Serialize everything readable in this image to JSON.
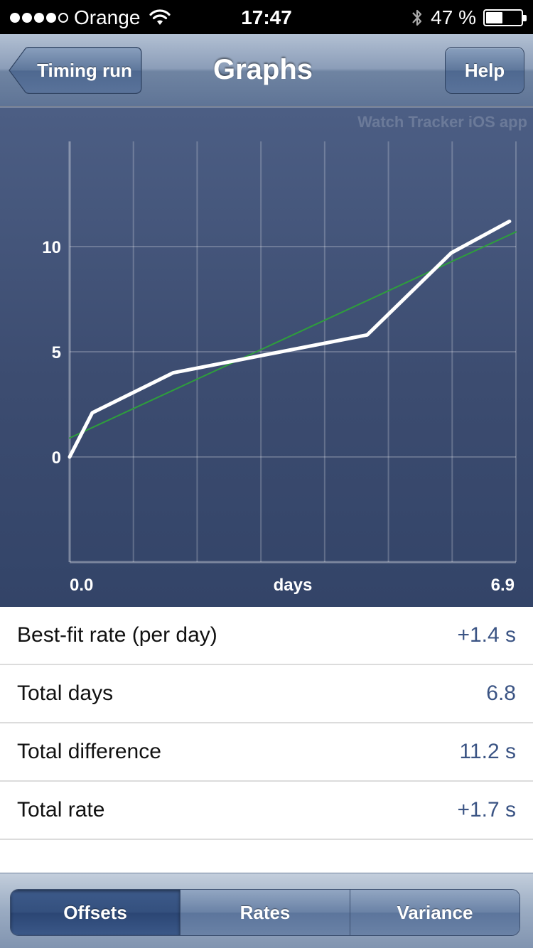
{
  "status_bar": {
    "carrier": "Orange",
    "signal_bars_filled": 4,
    "signal_bars_total": 5,
    "time": "17:47",
    "battery_text": "47 %",
    "battery_level": 0.47,
    "icons": [
      "wifi-icon",
      "bluetooth-icon",
      "battery-icon"
    ]
  },
  "nav": {
    "back_label": "Timing run",
    "title": "Graphs",
    "help_label": "Help"
  },
  "chart_data": {
    "type": "line",
    "watermark": "Watch Tracker iOS app",
    "xlabel": "days",
    "x_tick_labels": [
      "0.0",
      "6.9"
    ],
    "xlim": [
      0,
      6.9
    ],
    "ylim": [
      -5,
      15
    ],
    "y_ticks": [
      0,
      5,
      10
    ],
    "grid": true,
    "series": [
      {
        "color": "#ffffff",
        "x": [
          0.0,
          0.35,
          1.6,
          4.6,
          5.9,
          6.8
        ],
        "y": [
          0.0,
          2.1,
          4.0,
          5.8,
          9.7,
          11.2
        ]
      },
      {
        "color": "#2e9e3c",
        "x": [
          0.0,
          6.9
        ],
        "y": [
          0.9,
          10.7
        ]
      }
    ]
  },
  "stats": [
    {
      "label": "Best-fit rate (per day)",
      "value": "+1.4 s"
    },
    {
      "label": "Total days",
      "value": "6.8"
    },
    {
      "label": "Total difference",
      "value": "11.2 s"
    },
    {
      "label": "Total rate",
      "value": "+1.7 s"
    }
  ],
  "tabs": [
    {
      "label": "Offsets",
      "active": true
    },
    {
      "label": "Rates",
      "active": false
    },
    {
      "label": "Variance",
      "active": false
    }
  ]
}
